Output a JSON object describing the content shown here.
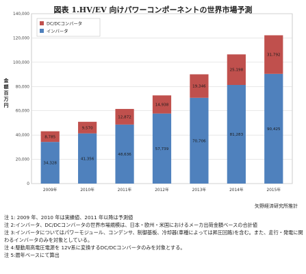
{
  "chart_data": {
    "type": "bar",
    "stacked": true,
    "title": "図表 1.HV/EV 向けパワーコンポーネントの世界市場予測",
    "ylabel": "金額 百万円",
    "categories": [
      "2009年",
      "2010年",
      "2011年",
      "2012年",
      "2013年",
      "2014年",
      "2015年"
    ],
    "ylim": [
      0,
      140000
    ],
    "yticks": [
      "0",
      "20,000",
      "40,000",
      "60,000",
      "80,000",
      "100,000",
      "120,000",
      "140,000"
    ],
    "grid": true,
    "legend": "top-left",
    "series": [
      {
        "name": "インバータ",
        "color": "#4f81bd",
        "values": [
          34328,
          41356,
          48636,
          57739,
          70706,
          81283,
          90425
        ],
        "labels": [
          "34,328",
          "41,356",
          "48,636",
          "57,739",
          "70,706",
          "81,283",
          "90,425"
        ]
      },
      {
        "name": "DC/DCコンバータ",
        "color": "#c0504d",
        "values": [
          8785,
          9570,
          12872,
          14938,
          19346,
          25198,
          31792
        ],
        "labels": [
          "8,785",
          "9,570",
          "12,872",
          "14,938",
          "19,346",
          "25,198",
          "31,792"
        ]
      }
    ]
  },
  "source": "矢野経済研究所推計",
  "notes": [
    "注 1: 2009 年、2010 年は実績値、2011 年以降は予測値",
    "注 2:インバータ、DC/DCコンバータの世界市場規模は、日本・欧州・米国におけるメーカ出荷金額ベースの合計値",
    "注 3:インバータについてはパワーモジュール、コンデンサ、制御基板、冷却器(車種によっては昇圧回路)を含む。また、走行・発電に関わるインバータのみを対象としている。",
    "注 4:駆動用高電圧電源を 12V系に変換するDC/DCコンバータのみを対象とする。",
    "注 5:暦年ベースにて算出"
  ]
}
